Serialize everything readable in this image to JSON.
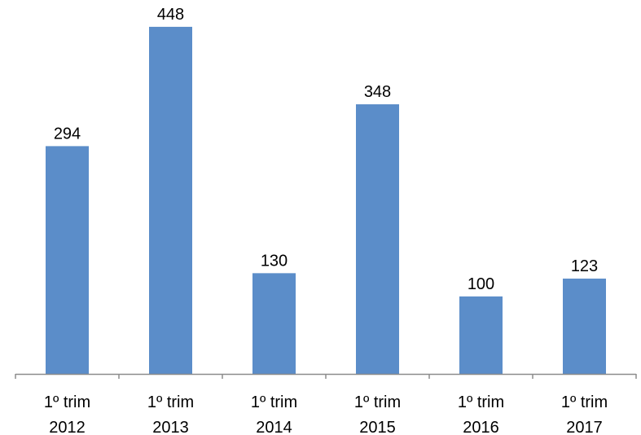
{
  "chart_data": {
    "type": "bar",
    "title": "",
    "xlabel": "",
    "ylabel": "",
    "categories": [
      [
        "1º trim",
        "2012"
      ],
      [
        "1º trim",
        "2013"
      ],
      [
        "1º trim",
        "2014"
      ],
      [
        "1º trim",
        "2015"
      ],
      [
        "1º trim",
        "2016"
      ],
      [
        "1º trim",
        "2017"
      ]
    ],
    "values": [
      294,
      448,
      130,
      348,
      100,
      123
    ],
    "data_labels": [
      "294",
      "448",
      "130",
      "348",
      "100",
      "123"
    ],
    "ylim": [
      0,
      470
    ],
    "grid": false,
    "legend": "none",
    "bar_color": "#5B8DC9",
    "axis_color": "#8C8C8C"
  }
}
